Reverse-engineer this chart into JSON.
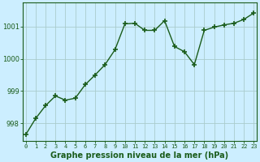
{
  "x": [
    0,
    1,
    2,
    3,
    4,
    5,
    6,
    7,
    8,
    9,
    10,
    11,
    12,
    13,
    14,
    15,
    16,
    17,
    18,
    19,
    20,
    21,
    22,
    23
  ],
  "y": [
    997.65,
    998.15,
    998.55,
    998.85,
    998.72,
    998.78,
    999.2,
    999.5,
    999.82,
    1000.28,
    1001.08,
    1001.1,
    1000.88,
    1000.88,
    1001.18,
    1000.38,
    1000.22,
    999.82,
    1000.88,
    1000.98,
    1001.05,
    1001.1,
    1001.22,
    1001.42
  ],
  "line_color": "#1a5c1a",
  "marker": "+",
  "marker_size": 4,
  "marker_lw": 1.2,
  "line_width": 1.0,
  "bg_color": "#cceeff",
  "grid_color": "#aacccc",
  "title": "Graphe pression niveau de la mer (hPa)",
  "ylabel_ticks": [
    998,
    999,
    1000,
    1001
  ],
  "xlim": [
    -0.3,
    23.3
  ],
  "ylim": [
    997.45,
    1001.75
  ],
  "xtick_labels": [
    "0",
    "1",
    "2",
    "3",
    "4",
    "5",
    "6",
    "7",
    "8",
    "9",
    "10",
    "11",
    "12",
    "13",
    "14",
    "15",
    "16",
    "17",
    "18",
    "19",
    "20",
    "21",
    "22",
    "23"
  ]
}
